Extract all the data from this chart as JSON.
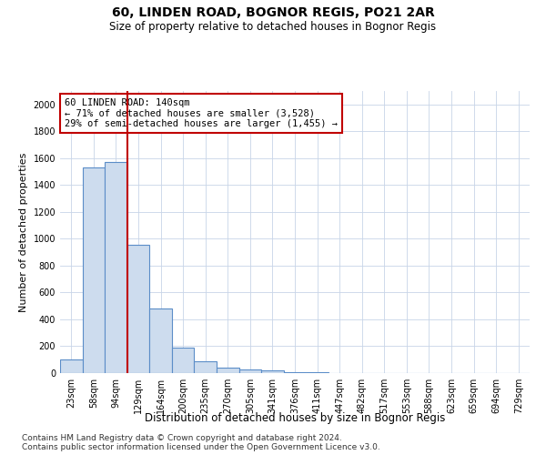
{
  "title": "60, LINDEN ROAD, BOGNOR REGIS, PO21 2AR",
  "subtitle": "Size of property relative to detached houses in Bognor Regis",
  "xlabel": "Distribution of detached houses by size in Bognor Regis",
  "ylabel": "Number of detached properties",
  "categories": [
    "23sqm",
    "58sqm",
    "94sqm",
    "129sqm",
    "164sqm",
    "200sqm",
    "235sqm",
    "270sqm",
    "305sqm",
    "341sqm",
    "376sqm",
    "411sqm",
    "447sqm",
    "482sqm",
    "517sqm",
    "553sqm",
    "588sqm",
    "623sqm",
    "659sqm",
    "694sqm",
    "729sqm"
  ],
  "values": [
    105,
    1530,
    1570,
    955,
    480,
    190,
    90,
    38,
    25,
    18,
    10,
    5,
    0,
    0,
    0,
    0,
    0,
    0,
    0,
    0,
    0
  ],
  "bar_color": "#cddcee",
  "bar_edge_color": "#5b8dc8",
  "vline_color": "#c00000",
  "annotation_text": "60 LINDEN ROAD: 140sqm\n← 71% of detached houses are smaller (3,528)\n29% of semi-detached houses are larger (1,455) →",
  "annotation_box_color": "#ffffff",
  "annotation_box_edge": "#c00000",
  "ylim": [
    0,
    2100
  ],
  "yticks": [
    0,
    200,
    400,
    600,
    800,
    1000,
    1200,
    1400,
    1600,
    1800,
    2000
  ],
  "footer": "Contains HM Land Registry data © Crown copyright and database right 2024.\nContains public sector information licensed under the Open Government Licence v3.0.",
  "title_fontsize": 10,
  "subtitle_fontsize": 8.5,
  "xlabel_fontsize": 8.5,
  "ylabel_fontsize": 8,
  "tick_fontsize": 7,
  "footer_fontsize": 6.5,
  "background_color": "#ffffff",
  "grid_color": "#c8d4e8"
}
